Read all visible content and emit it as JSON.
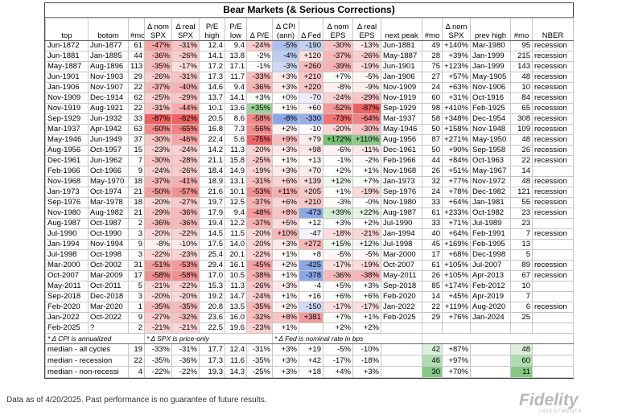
{
  "title": "Bear Markets (& Serious Corrections)",
  "table": {
    "columns": [
      "top",
      "botom",
      "#mo",
      "Δ nom SPX",
      "Δ real SPX",
      "P/E high",
      "P/E low",
      "Δ P/E",
      "Δ CPI (ann)",
      "Δ Fed",
      "Δ nom EPS",
      "Δ real EPS",
      "next peak",
      "#mo",
      "Δ nom SPX",
      "prev high",
      "#mo",
      "NBER"
    ],
    "rows": [
      [
        "Jun-1872",
        "Jun-1877",
        "61",
        "-47%",
        "-31%",
        "12.4",
        "9.4",
        "-24%",
        "-5%",
        "-190",
        "-30%",
        "-13%",
        "Jun-1881",
        "49",
        "+140%",
        "Mar-1980",
        "95",
        "recession"
      ],
      [
        "Jun-1881",
        "Jan-1885",
        "44",
        "-36%",
        "-26%",
        "14.1",
        "13.8",
        "-2%",
        "-4%",
        "+120",
        "-37%",
        "-26%",
        "May-1887",
        "28",
        "+39%",
        "Jan-1999",
        "215",
        "recession"
      ],
      [
        "May-1887",
        "Aug-1896",
        "113",
        "-35%",
        "-17%",
        "17.2",
        "17.1",
        "-1%",
        "-3%",
        "+260",
        "-39%",
        "-19%",
        "Jun-1901",
        "75",
        "+123%",
        "Jan-1999",
        "143",
        "recession"
      ],
      [
        "Jun-1901",
        "Nov-1903",
        "29",
        "-26%",
        "-31%",
        "17.3",
        "11.7",
        "-33%",
        "+3%",
        "+210",
        "+7%",
        "-5%",
        "Jan-1906",
        "27",
        "+57%",
        "May-1905",
        "48",
        "recession"
      ],
      [
        "Jan-1906",
        "Nov-1907",
        "22",
        "-37%",
        "-40%",
        "14.6",
        "9.4",
        "-36%",
        "+3%",
        "+220",
        "-8%",
        "-9%",
        "Nov-1909",
        "24",
        "+63%",
        "Nov-1906",
        "10",
        "recession"
      ],
      [
        "Nov-1909",
        "Dec-1914",
        "62",
        "-25%",
        "-29%",
        "13.7",
        "14.1",
        "+3%",
        "+0%",
        "-70",
        "-24%",
        "-29%",
        "Nov-1919",
        "60",
        "+31%",
        "Oct-1916",
        "84",
        "recession"
      ],
      [
        "Nov-1919",
        "Aug-1921",
        "22",
        "-31%",
        "-44%",
        "10.1",
        "13.6",
        "+35%",
        "+1%",
        "+60",
        "-52%",
        "-87%",
        "Sep-1929",
        "98",
        "+410%",
        "Feb-1925",
        "65",
        "recession"
      ],
      [
        "Sep-1929",
        "Jun-1932",
        "33",
        "-87%",
        "-82%",
        "20.5",
        "8.6",
        "-58%",
        "-8%",
        "-330",
        "-73%",
        "-64%",
        "Mar-1937",
        "58",
        "+348%",
        "Dec-1954",
        "308",
        "recession"
      ],
      [
        "Mar-1937",
        "Apr-1942",
        "63",
        "-60%",
        "-65%",
        "16.8",
        "7.3",
        "-56%",
        "+2%",
        "-10",
        "-20%",
        "-30%",
        "May-1946",
        "50",
        "+158%",
        "Nov-1948",
        "109",
        "recession"
      ],
      [
        "May-1946",
        "Jun-1949",
        "37",
        "-30%",
        "-46%",
        "22.4",
        "5.6",
        "-75%",
        "+9%",
        "+79",
        "+172%",
        "+110%",
        "Aug-1956",
        "87",
        "+271%",
        "May-1950",
        "48",
        "recession"
      ],
      [
        "Aug-1956",
        "Oct-1957",
        "15",
        "-23%",
        "-24%",
        "14.2",
        "11.3",
        "-20%",
        "+3%",
        "+98",
        "-6%",
        "-11%",
        "Dec-1961",
        "50",
        "+90%",
        "Sep-1958",
        "26",
        "recession"
      ],
      [
        "Dec-1961",
        "Jun-1962",
        "7",
        "-30%",
        "-28%",
        "21.1",
        "15.8",
        "-25%",
        "+1%",
        "+13",
        "-1%",
        "-2%",
        "Feb-1966",
        "44",
        "+84%",
        "Oct-1963",
        "22",
        "recession"
      ],
      [
        "Feb-1966",
        "Oct-1966",
        "9",
        "-24%",
        "-26%",
        "18.4",
        "14.9",
        "-19%",
        "+3%",
        "+70",
        "+2%",
        "+1%",
        "Nov-1968",
        "26",
        "+51%",
        "May-1967",
        "14",
        null
      ],
      [
        "Nov-1968",
        "May-1970",
        "18",
        "-37%",
        "-41%",
        "18.9",
        "13.1",
        "-31%",
        "+6%",
        "+139",
        "+12%",
        "+7%",
        "Jan-1973",
        "32",
        "+77%",
        "Nov-1972",
        "48",
        "recession"
      ],
      [
        "Jan-1973",
        "Oct-1974",
        "21",
        "-50%",
        "-57%",
        "21.6",
        "10.1",
        "-53%",
        "+11%",
        "+205",
        "+1%",
        "-19%",
        "Sep-1976",
        "24",
        "+78%",
        "Dec-1982",
        "121",
        "recession"
      ],
      [
        "Sep-1976",
        "Mar-1978",
        "18",
        "-20%",
        "-27%",
        "19.7",
        "12.5",
        "-37%",
        "+6%",
        "+210",
        "-3%",
        "-0%",
        "Nov-1980",
        "33",
        "+64%",
        "Jan-1981",
        "55",
        "recession"
      ],
      [
        "Nov-1980",
        "Aug-1982",
        "21",
        "-29%",
        "-36%",
        "17.9",
        "9.4",
        "-48%",
        "+8%",
        "-473",
        "+39%",
        "+22%",
        "Aug-1987",
        "61",
        "+233%",
        "Oct-1982",
        "23",
        "recession"
      ],
      [
        "Aug-1987",
        "Oct-1987",
        "2",
        "-36%",
        "-36%",
        "19.4",
        "12.2",
        "-37%",
        "+5%",
        "+12",
        "+3%",
        "+2%",
        "Jul-1990",
        "33",
        "+71%",
        "Jul-1989",
        "23",
        null
      ],
      [
        "Jul-1990",
        "Oct-1990",
        "3",
        "-20%",
        "-22%",
        "14.5",
        "11.5",
        "-20%",
        "+10%",
        "-47",
        "-18%",
        "-21%",
        "Jan-1994",
        "40",
        "+64%",
        "Feb-1991",
        "7",
        "recession"
      ],
      [
        "Jan-1994",
        "Nov-1994",
        "9",
        "-8%",
        "-10%",
        "17.5",
        "14.0",
        "-20%",
        "+3%",
        "+272",
        "+15%",
        "+12%",
        "Jul-1998",
        "45",
        "+169%",
        "Feb-1995",
        "13",
        null
      ],
      [
        "Jul-1998",
        "Oct-1998",
        "3",
        "-22%",
        "-23%",
        "25.4",
        "20.1",
        "-22%",
        "+1%",
        "+8",
        "-5%",
        "-5%",
        "Mar-2000",
        "17",
        "+68%",
        "Dec-1998",
        "5",
        null
      ],
      [
        "Mar-2000",
        "Oct-2002",
        "31",
        "-51%",
        "-53%",
        "29.4",
        "16.1",
        "-45%",
        "+2%",
        "-425",
        "-17%",
        "-19%",
        "Oct-2007",
        "61",
        "+105%",
        "Jul-2007",
        "89",
        "recession"
      ],
      [
        "Oct-2007",
        "Mar-2009",
        "17",
        "-58%",
        "-58%",
        "17.0",
        "10.5",
        "-38%",
        "+1%",
        "-378",
        "-36%",
        "-38%",
        "May-2011",
        "26",
        "+105%",
        "Apr-2013",
        "67",
        "recession"
      ],
      [
        "May-2011",
        "Oct-2011",
        "5",
        "-21%",
        "-22%",
        "15.3",
        "11.3",
        "-26%",
        "+3%",
        "-4",
        "+5%",
        "+3%",
        "Sep-2018",
        "85",
        "+174%",
        "Feb-2012",
        "10",
        null
      ],
      [
        "Sep-2018",
        "Dec-2018",
        "3",
        "-20%",
        "-20%",
        "19.2",
        "14.7",
        "-24%",
        "+1%",
        "+16",
        "+6%",
        "+6%",
        "Feb-2020",
        "14",
        "+45%",
        "Apr-2019",
        "7",
        null
      ],
      [
        "Feb-2020",
        "Mar-2020",
        "1",
        "-35%",
        "-35%",
        "20.8",
        "13.5",
        "-35%",
        "+2%",
        "-150",
        "-17%",
        "-17%",
        "Jan-2022",
        "22",
        "+119%",
        "Aug-2020",
        "6",
        "recession"
      ],
      [
        "Jan-2022",
        "Oct-2022",
        "9",
        "-27%",
        "-32%",
        "23.6",
        "16.0",
        "-32%",
        "+8%",
        "+381",
        "+7%",
        "+1%",
        "Feb-2025",
        "29",
        "+76%",
        "Jan-2024",
        "25",
        null
      ],
      [
        "Feb-2025",
        "?",
        "2",
        "-21%",
        "-21%",
        "22.5",
        "19.6",
        "-23%",
        "+1%",
        null,
        "+2%",
        "+2%",
        null,
        null,
        null,
        null,
        null,
        null
      ]
    ],
    "footnotes": [
      "* Δ CPI is annualized",
      "* Δ SPX is price-only",
      "* Δ Fed is nominal rate in bps"
    ],
    "medians": [
      [
        "median - all cycles",
        "19",
        "-33%",
        "-31%",
        "17.7",
        "12.4",
        "-31%",
        "+3%",
        "+19",
        "-5%",
        "-10%",
        null,
        "42",
        "+87%",
        null,
        "48",
        null
      ],
      [
        "median - recession",
        "22",
        "-35%",
        "-36%",
        "17.3",
        "11.6",
        "-35%",
        "+3%",
        "+42",
        "-17%",
        "-18%",
        null,
        "46",
        "+97%",
        null,
        "60",
        null
      ],
      [
        "median - non-recessi",
        "4",
        "-22%",
        "-22%",
        "19.3",
        "14.3",
        "-25%",
        "+3%",
        "+18",
        "+4%",
        "+3%",
        null,
        "30",
        "+70%",
        null,
        "11",
        null
      ]
    ]
  },
  "footer": {
    "note": "Data as of 4/20/2025. Past performance is no guarantee of future results.",
    "logo": "Fidelity",
    "logo_sub": "INVESTMENTS"
  }
}
